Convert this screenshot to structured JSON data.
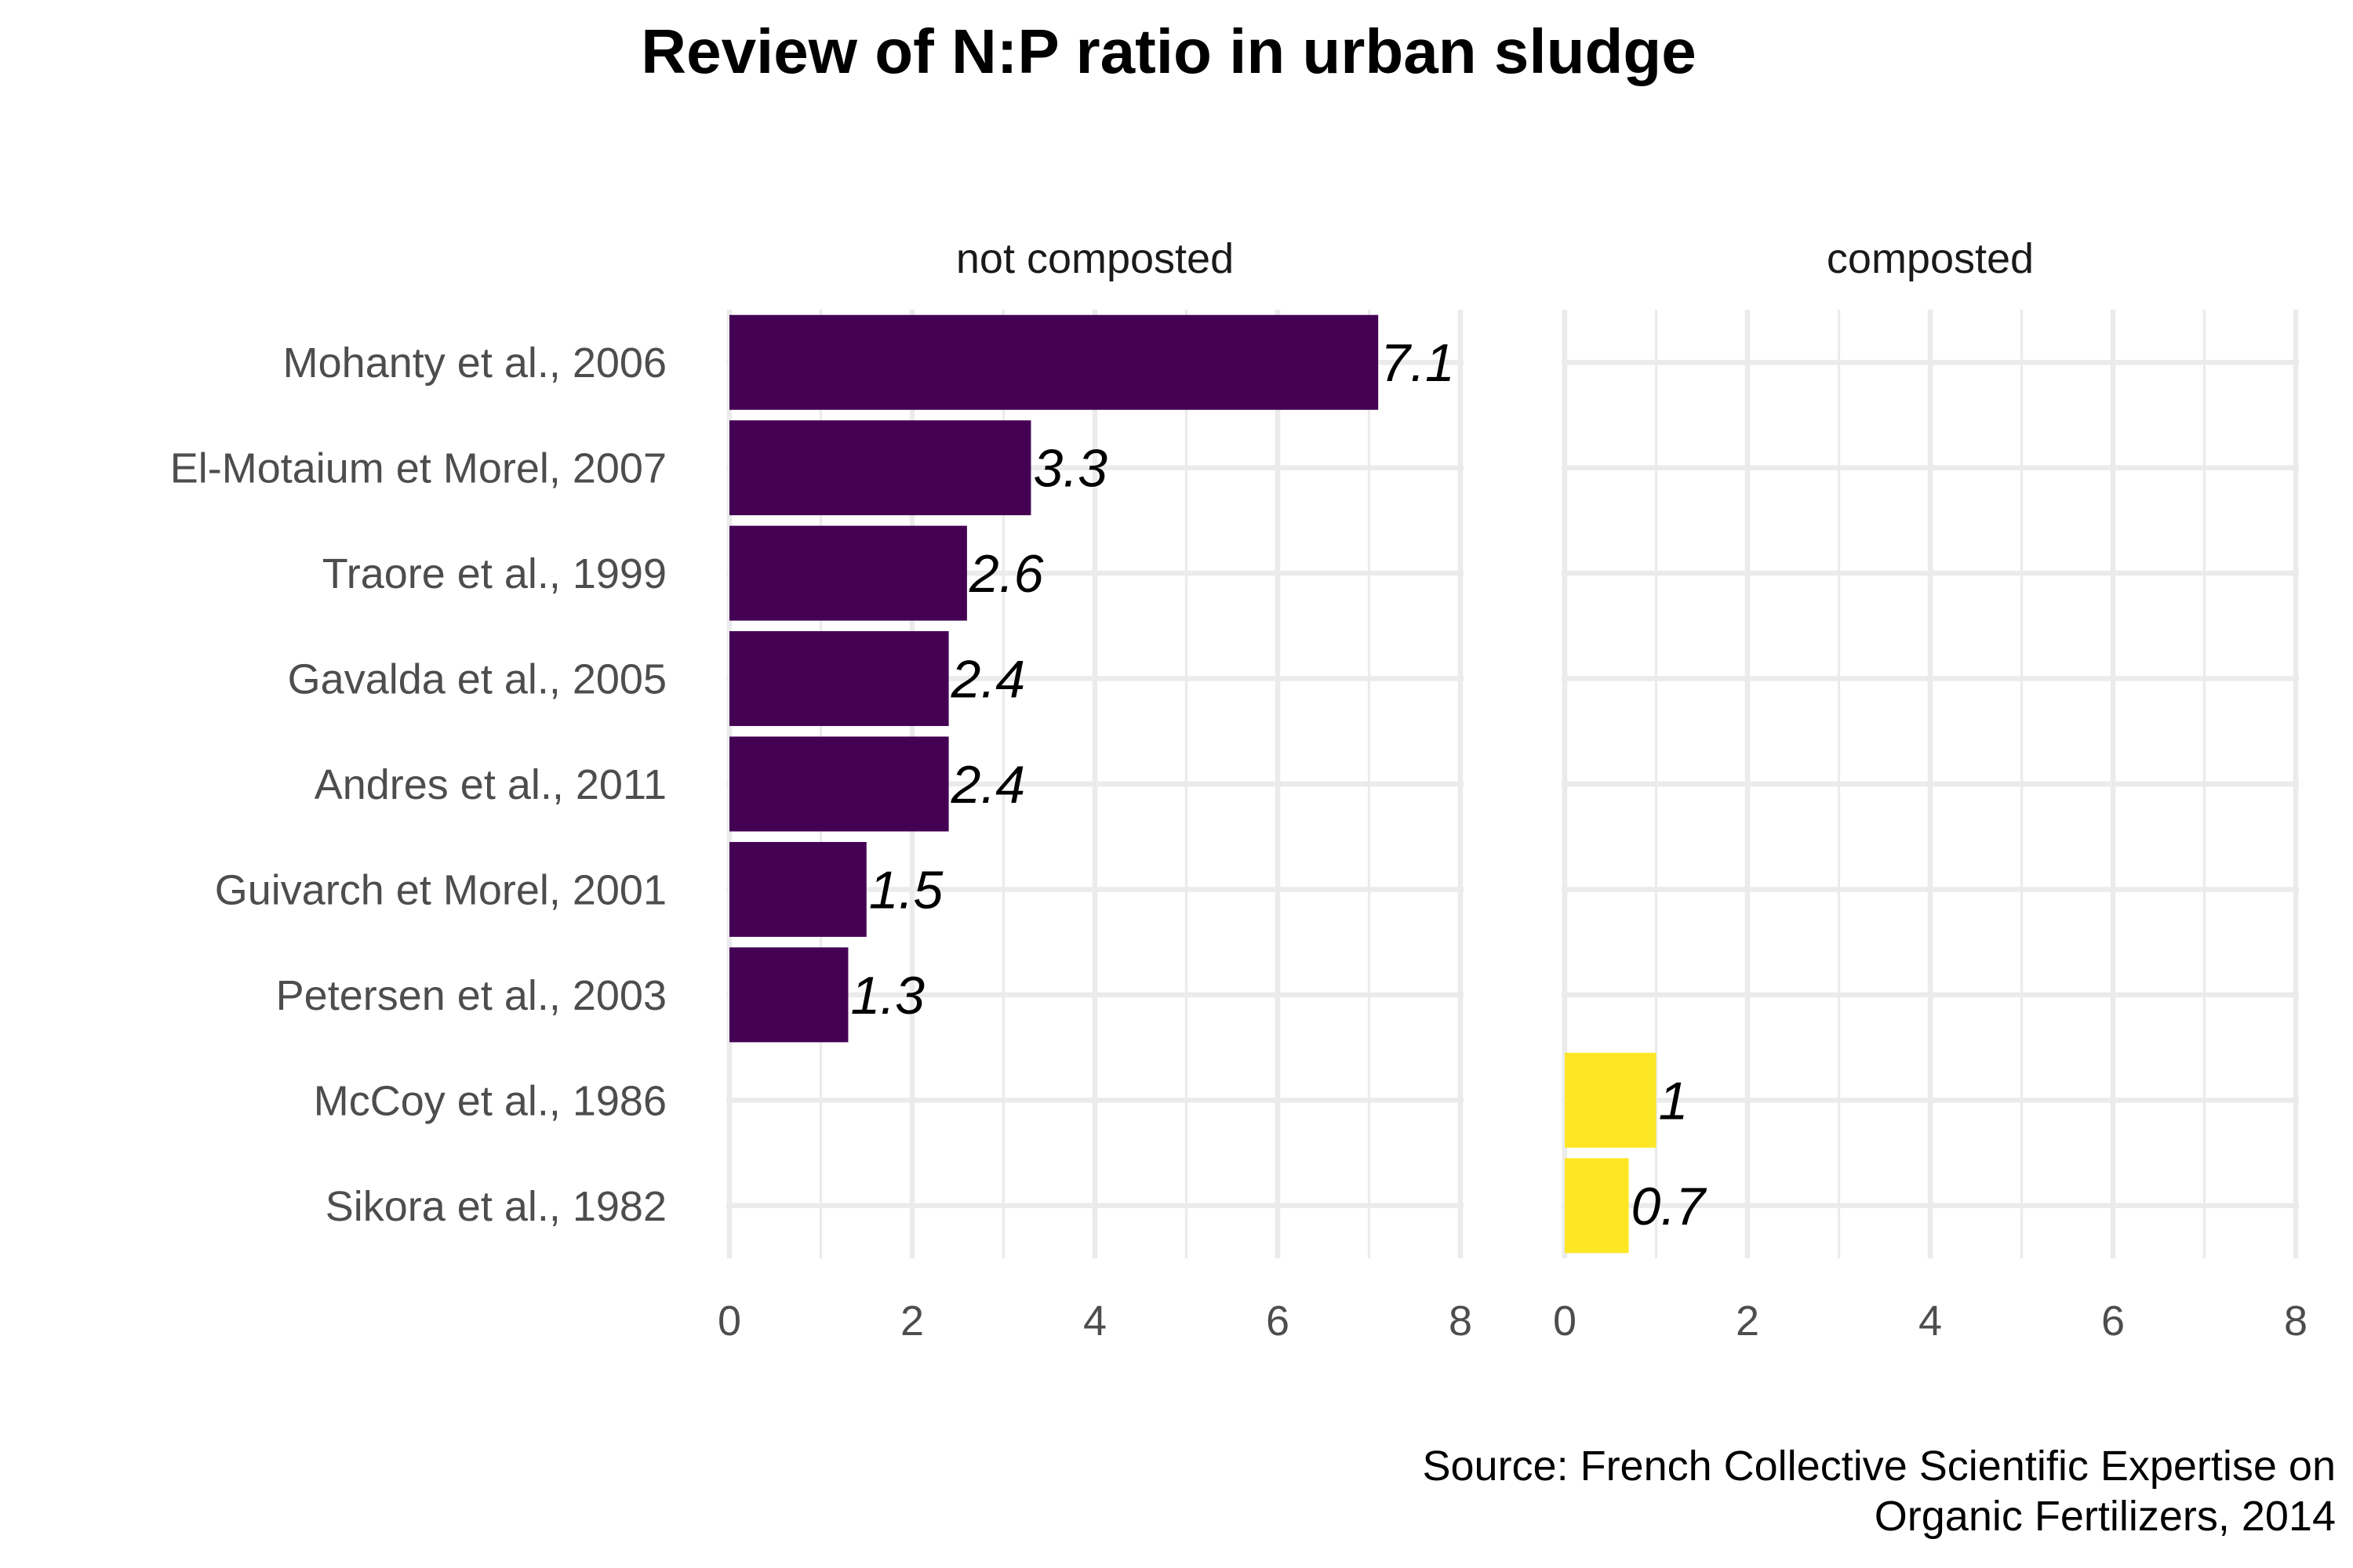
{
  "chart_data": {
    "type": "bar",
    "orientation": "horizontal",
    "title": "Review of N:P ratio in urban sludge",
    "caption_lines": [
      "Source: French Collective Scientific Expertise on",
      "Organic Fertilizers, 2014"
    ],
    "xlim": [
      0,
      8
    ],
    "x_ticks": [
      "0",
      "2",
      "4",
      "6",
      "8"
    ],
    "grid": true,
    "legend": "none",
    "categories": [
      "Mohanty et al., 2006",
      "El-Motaium et Morel, 2007",
      "Traore et al., 1999",
      "Gavalda et al., 2005",
      "Andres et al., 2011",
      "Guivarch et Morel, 2001",
      "Petersen et al., 2003",
      "McCoy et al., 1986",
      "Sikora et al., 1982"
    ],
    "panels": [
      {
        "label": "not composted",
        "color": "#440154",
        "bars": [
          {
            "category": "Mohanty et al., 2006",
            "value": 7.1,
            "label": "7.1"
          },
          {
            "category": "El-Motaium et Morel, 2007",
            "value": 3.3,
            "label": "3.3"
          },
          {
            "category": "Traore et al., 1999",
            "value": 2.6,
            "label": "2.6"
          },
          {
            "category": "Gavalda et al., 2005",
            "value": 2.4,
            "label": "2.4"
          },
          {
            "category": "Andres et al., 2011",
            "value": 2.4,
            "label": "2.4"
          },
          {
            "category": "Guivarch et Morel, 2001",
            "value": 1.5,
            "label": "1.5"
          },
          {
            "category": "Petersen et al., 2003",
            "value": 1.3,
            "label": "1.3"
          }
        ]
      },
      {
        "label": "composted",
        "color": "#FDE725",
        "bars": [
          {
            "category": "McCoy et al., 1986",
            "value": 1,
            "label": "1"
          },
          {
            "category": "Sikora et al., 1982",
            "value": 0.7,
            "label": "0.7"
          }
        ]
      }
    ]
  }
}
